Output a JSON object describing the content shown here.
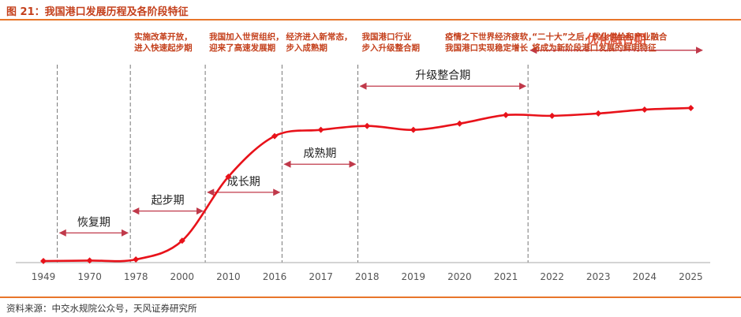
{
  "title": "图 21：我国港口发展历程及各阶段特征",
  "source": "资料来源：中交水规院公众号，天风证券研究所",
  "colors": {
    "accent": "#c4401c",
    "line": "#e8121a",
    "arrow": "#c0394a",
    "rule": "#e8752a",
    "axis_label": "#555555",
    "stage_label": "#222222"
  },
  "chart_data": {
    "type": "line",
    "x_ticks": [
      "1949",
      "1970",
      "1978",
      "2000",
      "2010",
      "2016",
      "2017",
      "2018",
      "2019",
      "2020",
      "2021",
      "2022",
      "2023",
      "2024",
      "2025"
    ],
    "series": [
      {
        "values": [
          0.0,
          0.3,
          1.0,
          13.0,
          54.0,
          80.0,
          84.0,
          86.5,
          84.0,
          88.0,
          93.5,
          93.0,
          94.5,
          97.0,
          98.0
        ]
      }
    ],
    "ylim": [
      0,
      100
    ],
    "grid": false,
    "stages": [
      {
        "label": "恢复期",
        "from": 0.3,
        "to": 1.88,
        "level": 18
      },
      {
        "label": "起步期",
        "from": 1.88,
        "to": 3.5,
        "level": 32
      },
      {
        "label": "成长期",
        "from": 3.5,
        "to": 5.16,
        "level": 44
      },
      {
        "label": "成熟期",
        "from": 5.16,
        "to": 6.8,
        "level": 62
      },
      {
        "label": "升级整合期",
        "from": 6.8,
        "to": 10.48,
        "level": 112
      },
      {
        "label": "优化融合期",
        "from": 10.48,
        "to": 14.3,
        "level": 135,
        "highlight": true
      }
    ],
    "dividers": [
      0.3,
      1.88,
      3.5,
      5.16,
      6.8,
      10.48
    ],
    "annotations": [
      {
        "lines": [
          "实施改革开放，",
          "进入快速起步期"
        ],
        "x": 1.88
      },
      {
        "lines": [
          "我国加入世贸组织，",
          "迎来了高速发展期"
        ],
        "x": 3.5
      },
      {
        "lines": [
          "经济进入新常态，",
          "步入成熟期"
        ],
        "x": 5.16
      },
      {
        "lines": [
          "我国港口行业",
          "步入升级整合期"
        ],
        "x": 6.8
      },
      {
        "lines": [
          "疫情之下世界经济疲软，",
          "我国港口实现稳定增长"
        ],
        "x": 8.6
      },
      {
        "lines": [
          "“二十大”之后，优化供给和产业融合",
          "将成为新阶段港口发展的鲜明特征"
        ],
        "x": 10.48
      }
    ]
  }
}
